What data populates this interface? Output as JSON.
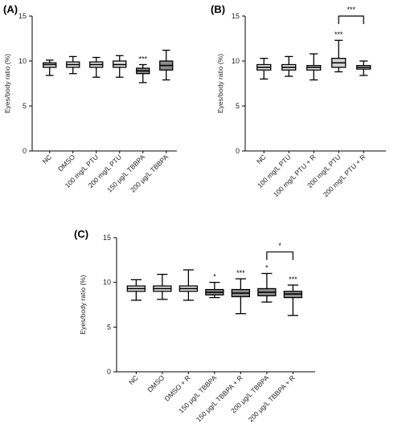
{
  "chart_data": [
    {
      "panel": "(A)",
      "type": "boxplot",
      "ylabel": "Eyes/body ratio (%)",
      "ylim": [
        0,
        15
      ],
      "yticks": [
        "0",
        "5",
        "10",
        "15"
      ],
      "categories": [
        "NC",
        "DMSO",
        "100 mg/L PTU",
        "200 mg/L PTU",
        "150 μg/L TBBPA",
        "200 μg/L TBBPA"
      ],
      "boxes": [
        {
          "min": 8.4,
          "q1": 9.3,
          "median": 9.6,
          "q3": 9.8,
          "max": 10.1,
          "sig": "",
          "fill": "#e6e6e6"
        },
        {
          "min": 8.6,
          "q1": 9.3,
          "median": 9.6,
          "q3": 9.9,
          "max": 10.5,
          "sig": "",
          "fill": "#e6e6e6"
        },
        {
          "min": 8.2,
          "q1": 9.3,
          "median": 9.6,
          "q3": 9.9,
          "max": 10.4,
          "sig": "",
          "fill": "#e6e6e6"
        },
        {
          "min": 8.2,
          "q1": 9.3,
          "median": 9.6,
          "q3": 10.0,
          "max": 10.6,
          "sig": "",
          "fill": "#e6e6e6"
        },
        {
          "min": 7.6,
          "q1": 8.6,
          "median": 8.9,
          "q3": 9.2,
          "max": 9.6,
          "sig": "***",
          "fill": "#8c8c8c"
        },
        {
          "min": 7.9,
          "q1": 9.0,
          "median": 9.5,
          "q3": 10.0,
          "max": 11.2,
          "sig": "",
          "fill": "#8c8c8c"
        }
      ],
      "brackets": []
    },
    {
      "panel": "(B)",
      "type": "boxplot",
      "ylabel": "Eyes/body ratio (%)",
      "ylim": [
        0,
        15
      ],
      "yticks": [
        "0",
        "5",
        "10",
        "15"
      ],
      "categories": [
        "NC",
        "100 mg/L PTU",
        "100 mg/L PTU + R",
        "200 mg/L PTU",
        "200 mg/L PTU + R"
      ],
      "boxes": [
        {
          "min": 8.0,
          "q1": 9.0,
          "median": 9.3,
          "q3": 9.6,
          "max": 10.3,
          "sig": "",
          "fill": "#e6e6e6"
        },
        {
          "min": 8.3,
          "q1": 9.0,
          "median": 9.3,
          "q3": 9.6,
          "max": 10.5,
          "sig": "",
          "fill": "#e6e6e6"
        },
        {
          "min": 7.9,
          "q1": 9.0,
          "median": 9.3,
          "q3": 9.5,
          "max": 10.8,
          "sig": "",
          "fill": "#e6e6e6"
        },
        {
          "min": 8.8,
          "q1": 9.3,
          "median": 9.8,
          "q3": 10.3,
          "max": 12.3,
          "sig": "***",
          "fill": "#d4d4d4"
        },
        {
          "min": 8.4,
          "q1": 9.1,
          "median": 9.3,
          "q3": 9.5,
          "max": 10.0,
          "sig": "",
          "fill": "#e6e6e6"
        }
      ],
      "brackets": [
        {
          "from": 3,
          "to": 4,
          "y": 15.0,
          "sig": "***"
        }
      ]
    },
    {
      "panel": "(C)",
      "type": "boxplot",
      "ylabel": "Eyes/body ratio (%)",
      "ylim": [
        0,
        15
      ],
      "yticks": [
        "0",
        "5",
        "10",
        "15"
      ],
      "categories": [
        "NC",
        "DMSO",
        "DMSO + R",
        "150 μg/L TBBPA",
        "150 μg/L TBBPA + R",
        "200 μg/L TBBPA",
        "200 μg/L TBBPA + R"
      ],
      "boxes": [
        {
          "min": 8.0,
          "q1": 9.0,
          "median": 9.3,
          "q3": 9.6,
          "max": 10.3,
          "sig": "",
          "fill": "#e6e6e6"
        },
        {
          "min": 8.1,
          "q1": 9.0,
          "median": 9.3,
          "q3": 9.6,
          "max": 10.9,
          "sig": "",
          "fill": "#e6e6e6"
        },
        {
          "min": 8.0,
          "q1": 9.0,
          "median": 9.3,
          "q3": 9.6,
          "max": 11.4,
          "sig": "",
          "fill": "#e6e6e6"
        },
        {
          "min": 8.3,
          "q1": 8.6,
          "median": 8.9,
          "q3": 9.2,
          "max": 10.0,
          "sig": "*",
          "fill": "#8c8c8c"
        },
        {
          "min": 6.5,
          "q1": 8.4,
          "median": 8.8,
          "q3": 9.2,
          "max": 10.4,
          "sig": "***",
          "fill": "#8c8c8c"
        },
        {
          "min": 7.8,
          "q1": 8.5,
          "median": 8.9,
          "q3": 9.3,
          "max": 11.0,
          "sig": "*",
          "fill": "#8c8c8c"
        },
        {
          "min": 6.3,
          "q1": 8.3,
          "median": 8.7,
          "q3": 9.0,
          "max": 9.7,
          "sig": "***",
          "fill": "#8c8c8c"
        }
      ],
      "brackets": [
        {
          "from": 5,
          "to": 6,
          "y": 13.4,
          "sig": "*"
        }
      ]
    }
  ]
}
